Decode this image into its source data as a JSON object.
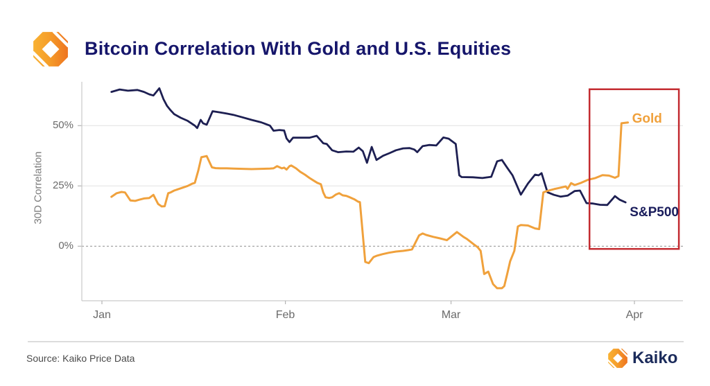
{
  "header": {
    "title": "Bitcoin Correlation With Gold and U.S. Equities"
  },
  "footer": {
    "source": "Source: Kaiko Price Data",
    "brand": "Kaiko"
  },
  "chart_data": {
    "type": "line",
    "title": "Bitcoin Correlation With Gold and U.S. Equities",
    "ylabel": "30D Correlation",
    "x_unit": "days_since_jan_1",
    "xlim": [
      -3.4,
      98.2
    ],
    "ylim": [
      -22.6,
      68.2
    ],
    "grid": true,
    "legend_position": "line-end-labels",
    "xticks": [
      {
        "label": "Jan",
        "day": 0
      },
      {
        "label": "Feb",
        "day": 31
      },
      {
        "label": "Mar",
        "day": 59
      },
      {
        "label": "Apr",
        "day": 90
      }
    ],
    "yticks": [
      {
        "label": "0%",
        "value": 0,
        "dashed": true
      },
      {
        "label": "25%",
        "value": 25,
        "dashed": false
      },
      {
        "label": "50%",
        "value": 50,
        "dashed": false
      }
    ],
    "series": [
      {
        "name": "S&P500",
        "color": "#1D1F52",
        "width": 2.8,
        "points": [
          [
            1.6,
            64
          ],
          [
            3,
            65
          ],
          [
            4.4,
            64.5
          ],
          [
            6,
            64.8
          ],
          [
            7.1,
            64
          ],
          [
            8,
            63
          ],
          [
            8.7,
            62.5
          ],
          [
            9.7,
            65.5
          ],
          [
            10.4,
            61
          ],
          [
            11,
            58.2
          ],
          [
            11.6,
            56.4
          ],
          [
            12.2,
            54.8
          ],
          [
            13.3,
            53.3
          ],
          [
            14.5,
            52
          ],
          [
            15.7,
            50
          ],
          [
            16.1,
            49
          ],
          [
            16.7,
            52.4
          ],
          [
            17.1,
            51
          ],
          [
            17.7,
            50.4
          ],
          [
            18.7,
            56
          ],
          [
            20,
            55.5
          ],
          [
            21.1,
            55
          ],
          [
            22.2,
            54.5
          ],
          [
            23.7,
            53.5
          ],
          [
            25.3,
            52.4
          ],
          [
            26.9,
            51.4
          ],
          [
            28.4,
            50
          ],
          [
            29,
            47.9
          ],
          [
            30,
            48.2
          ],
          [
            30.8,
            48
          ],
          [
            31.2,
            44.7
          ],
          [
            31.7,
            43.2
          ],
          [
            32.3,
            45
          ],
          [
            33.4,
            45
          ],
          [
            35.1,
            45
          ],
          [
            36.3,
            45.8
          ],
          [
            37.4,
            42.7
          ],
          [
            38,
            42.4
          ],
          [
            38.9,
            39.8
          ],
          [
            39.9,
            39
          ],
          [
            41.3,
            39.3
          ],
          [
            42.5,
            39.2
          ],
          [
            43.4,
            40.9
          ],
          [
            44.1,
            39.4
          ],
          [
            44.8,
            34.6
          ],
          [
            45.6,
            41.2
          ],
          [
            46.4,
            35.8
          ],
          [
            47.5,
            37.5
          ],
          [
            48.6,
            38.6
          ],
          [
            49.7,
            39.8
          ],
          [
            50.9,
            40.6
          ],
          [
            52,
            40.7
          ],
          [
            52.8,
            40.1
          ],
          [
            53.3,
            39
          ],
          [
            54.2,
            41.5
          ],
          [
            55.3,
            42
          ],
          [
            56.5,
            41.8
          ],
          [
            57.7,
            45.1
          ],
          [
            58.6,
            44.6
          ],
          [
            59.8,
            42.4
          ],
          [
            60.4,
            29.4
          ],
          [
            60.8,
            28.7
          ],
          [
            62.7,
            28.6
          ],
          [
            64.3,
            28.3
          ],
          [
            65.8,
            28.8
          ],
          [
            66.8,
            35.2
          ],
          [
            67.6,
            35.8
          ],
          [
            68.5,
            32.5
          ],
          [
            69.4,
            29.4
          ],
          [
            70.8,
            21.4
          ],
          [
            72,
            26
          ],
          [
            73.2,
            29.7
          ],
          [
            73.8,
            29.4
          ],
          [
            74.3,
            30.3
          ],
          [
            75.3,
            22.4
          ],
          [
            76.4,
            21.3
          ],
          [
            77.5,
            20.6
          ],
          [
            78.7,
            21
          ],
          [
            79.9,
            22.9
          ],
          [
            80.8,
            23.1
          ],
          [
            81.9,
            17.9
          ],
          [
            83,
            17.7
          ],
          [
            84.2,
            17.2
          ],
          [
            85.4,
            17.1
          ],
          [
            86.3,
            19.6
          ],
          [
            86.7,
            20.8
          ],
          [
            87.5,
            19.3
          ],
          [
            88.5,
            18.2
          ]
        ]
      },
      {
        "name": "Gold",
        "color": "#F0A13C",
        "width": 3,
        "points": [
          [
            1.6,
            20.5
          ],
          [
            2.5,
            22
          ],
          [
            3.3,
            22.5
          ],
          [
            3.9,
            22.3
          ],
          [
            4.8,
            19
          ],
          [
            5.6,
            18.8
          ],
          [
            6.3,
            19.3
          ],
          [
            7.1,
            19.8
          ],
          [
            8,
            20
          ],
          [
            8.7,
            21.3
          ],
          [
            9.5,
            17.5
          ],
          [
            10.1,
            16.5
          ],
          [
            10.6,
            16.6
          ],
          [
            11.2,
            22
          ],
          [
            11.6,
            22.3
          ],
          [
            12.2,
            23.1
          ],
          [
            13.3,
            24
          ],
          [
            14.5,
            25
          ],
          [
            15.3,
            26
          ],
          [
            15.7,
            26.3
          ],
          [
            16.3,
            31.5
          ],
          [
            16.8,
            36.9
          ],
          [
            17.7,
            37.4
          ],
          [
            18.6,
            32.7
          ],
          [
            19.2,
            32.4
          ],
          [
            20,
            32.3
          ],
          [
            21.1,
            32.3
          ],
          [
            22.2,
            32.2
          ],
          [
            23.7,
            32.1
          ],
          [
            25.3,
            32
          ],
          [
            26.9,
            32.1
          ],
          [
            28.4,
            32.2
          ],
          [
            29,
            32.3
          ],
          [
            29.6,
            33.2
          ],
          [
            30.4,
            32.3
          ],
          [
            30.8,
            32.6
          ],
          [
            31.2,
            31.8
          ],
          [
            31.7,
            33.2
          ],
          [
            32,
            33.5
          ],
          [
            32.8,
            32.3
          ],
          [
            33.5,
            30.9
          ],
          [
            34.3,
            29.7
          ],
          [
            35.1,
            28.3
          ],
          [
            35.8,
            27.2
          ],
          [
            36.4,
            26.3
          ],
          [
            37,
            25.7
          ],
          [
            37.4,
            22.3
          ],
          [
            37.8,
            20.3
          ],
          [
            38.4,
            20
          ],
          [
            38.9,
            20.3
          ],
          [
            39.5,
            21.4
          ],
          [
            40.1,
            22
          ],
          [
            40.7,
            21.1
          ],
          [
            41.3,
            20.9
          ],
          [
            41.9,
            20.3
          ],
          [
            42.7,
            19.4
          ],
          [
            43.3,
            18.5
          ],
          [
            43.6,
            18.3
          ],
          [
            44.5,
            -6.5
          ],
          [
            45.1,
            -7
          ],
          [
            45.9,
            -4.5
          ],
          [
            46.5,
            -3.9
          ],
          [
            47.4,
            -3.3
          ],
          [
            48.5,
            -2.7
          ],
          [
            49.7,
            -2.2
          ],
          [
            50.9,
            -1.9
          ],
          [
            51.8,
            -1.6
          ],
          [
            52.4,
            -1.3
          ],
          [
            53,
            1.6
          ],
          [
            53.6,
            4.5
          ],
          [
            54.2,
            5.3
          ],
          [
            54.8,
            4.7
          ],
          [
            56,
            3.9
          ],
          [
            57.1,
            3.3
          ],
          [
            58.3,
            2.5
          ],
          [
            60,
            5.9
          ],
          [
            61.1,
            3.9
          ],
          [
            61.7,
            3
          ],
          [
            62.9,
            0.7
          ],
          [
            63.5,
            -0.4
          ],
          [
            64,
            -1.9
          ],
          [
            64.6,
            -11.5
          ],
          [
            65.3,
            -10.5
          ],
          [
            66.1,
            -15.7
          ],
          [
            66.8,
            -17.4
          ],
          [
            67.6,
            -17.4
          ],
          [
            68,
            -16.5
          ],
          [
            68.5,
            -11.4
          ],
          [
            69,
            -6.2
          ],
          [
            69.7,
            -1.9
          ],
          [
            70.3,
            8.2
          ],
          [
            70.8,
            8.8
          ],
          [
            72,
            8.6
          ],
          [
            73.2,
            7.4
          ],
          [
            73.9,
            7.1
          ],
          [
            74.6,
            22.3
          ],
          [
            75.2,
            22.9
          ],
          [
            76.4,
            23.7
          ],
          [
            77.5,
            24.3
          ],
          [
            78.4,
            24.8
          ],
          [
            78.7,
            23.8
          ],
          [
            79.3,
            26.2
          ],
          [
            79.9,
            25.4
          ],
          [
            81,
            26.3
          ],
          [
            82.2,
            27.6
          ],
          [
            83.4,
            28.3
          ],
          [
            84.6,
            29.5
          ],
          [
            85.7,
            29.3
          ],
          [
            86.7,
            28.4
          ],
          [
            87.3,
            29.1
          ],
          [
            87.8,
            51
          ],
          [
            88.9,
            51.3
          ]
        ]
      }
    ],
    "annotations": [
      {
        "text": "Gold",
        "day": 89.6,
        "pct": 52.6,
        "color": "#F0A13C"
      },
      {
        "text": "S&P500",
        "day": 89.2,
        "pct": 13.9,
        "color": "#1A1D5C"
      }
    ],
    "highlight_box": {
      "day_start": 82.4,
      "day_end": 97.5,
      "pct_bottom": -1.1,
      "pct_top": 65.1,
      "color": "#C32B30"
    }
  }
}
